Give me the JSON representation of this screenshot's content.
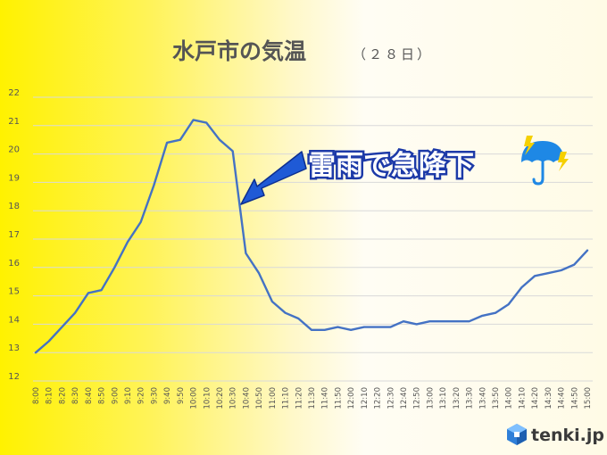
{
  "colors": {
    "series": "#4472c4",
    "arrow": "#1f5ad6",
    "arrow_outline": "#0d2f8f",
    "umbrella": "#1e88e5",
    "lightning": "#f5d000"
  },
  "icons": {
    "annotation": "umbrella-lightning-icon",
    "logo": "tenki-logo-icon"
  },
  "logo": {
    "text": "tenki.jp"
  },
  "annotation": {
    "text": "雷雨で急降下",
    "points_to": "10:40"
  },
  "chart_data": {
    "type": "line",
    "title": "水戸市の気温",
    "subtitle": "（２８日）",
    "xlabel": "",
    "ylabel": "",
    "ylim": [
      12,
      22
    ],
    "yticks": [
      12,
      13,
      14,
      15,
      16,
      17,
      18,
      19,
      20,
      21,
      22
    ],
    "grid": true,
    "legend": "none",
    "categories": [
      "8:00",
      "8:10",
      "8:20",
      "8:30",
      "8:40",
      "8:50",
      "9:00",
      "9:10",
      "9:20",
      "9:30",
      "9:40",
      "9:50",
      "10:00",
      "10:10",
      "10:20",
      "10:30",
      "10:40",
      "10:50",
      "11:00",
      "11:10",
      "11:20",
      "11:30",
      "11:40",
      "11:50",
      "12:00",
      "12:10",
      "12:20",
      "12:30",
      "12:40",
      "12:50",
      "13:00",
      "13:10",
      "13:20",
      "13:30",
      "13:40",
      "13:50",
      "14:00",
      "14:10",
      "14:20",
      "14:30",
      "14:40",
      "14:50",
      "15:00"
    ],
    "values": [
      13.0,
      13.4,
      13.9,
      14.4,
      15.1,
      15.2,
      16.0,
      16.9,
      17.6,
      18.9,
      20.4,
      20.5,
      21.2,
      21.1,
      20.5,
      20.1,
      16.5,
      15.8,
      14.8,
      14.4,
      14.2,
      13.8,
      13.8,
      13.9,
      13.8,
      13.9,
      13.9,
      13.9,
      14.1,
      14.0,
      14.1,
      14.1,
      14.1,
      14.1,
      14.3,
      14.4,
      14.7,
      15.3,
      15.7,
      15.8,
      15.9,
      16.1,
      16.6
    ]
  }
}
